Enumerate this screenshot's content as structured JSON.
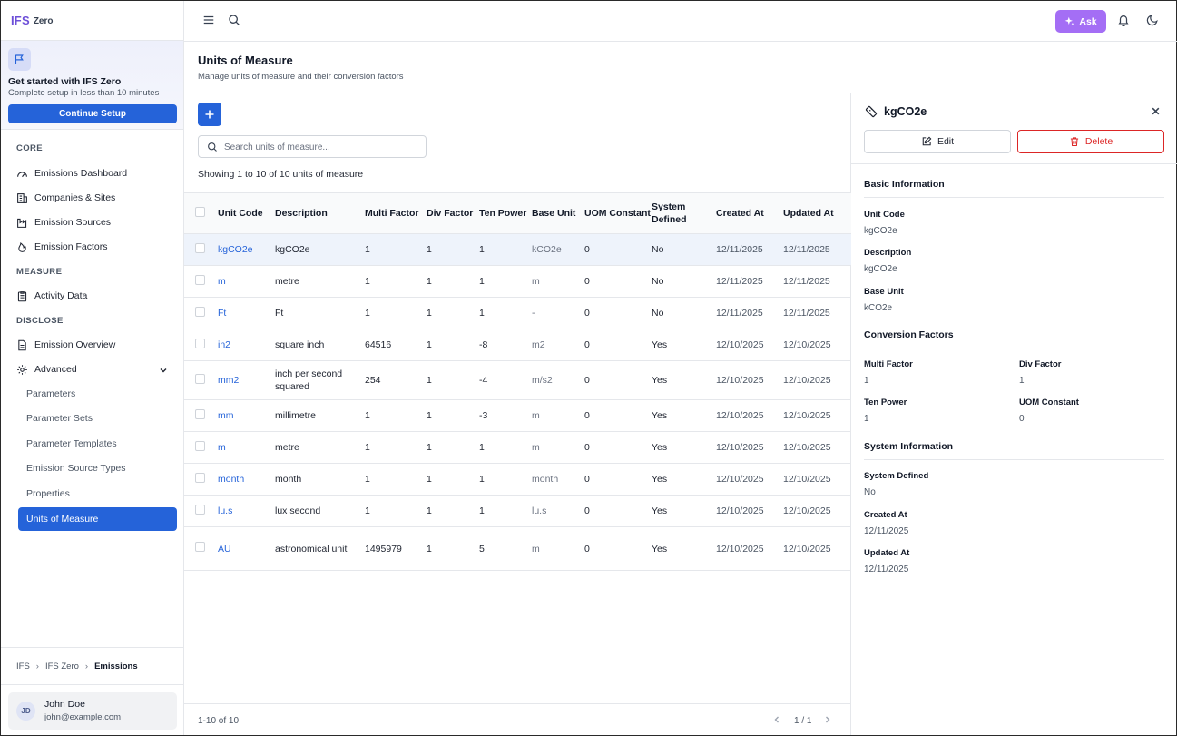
{
  "brand": {
    "name": "IFS",
    "product": "Zero"
  },
  "setup": {
    "title": "Get started with IFS Zero",
    "subtitle": "Complete setup in less than 10 minutes",
    "button": "Continue Setup"
  },
  "sidebar": {
    "sections": [
      "CORE",
      "MEASURE",
      "DISCLOSE"
    ],
    "core": [
      "Emissions Dashboard",
      "Companies & Sites",
      "Emission Sources",
      "Emission Factors"
    ],
    "measure": [
      "Activity Data"
    ],
    "disclose": [
      "Emission Overview",
      "Advanced"
    ],
    "advanced_items": [
      "Parameters",
      "Parameter Sets",
      "Parameter Templates",
      "Emission Source Types",
      "Properties",
      "Units of Measure"
    ]
  },
  "breadcrumb": [
    "IFS",
    "IFS Zero",
    "Emissions"
  ],
  "user": {
    "initials": "JD",
    "name": "John Doe",
    "email": "john@example.com"
  },
  "topbar": {
    "ask": "Ask"
  },
  "page": {
    "title": "Units of Measure",
    "subtitle": "Manage units of measure and their conversion factors"
  },
  "search": {
    "placeholder": "Search units of measure...",
    "value": ""
  },
  "showing": "Showing 1 to 10 of 10 units of measure",
  "table": {
    "headers": [
      "Unit Code",
      "Description",
      "Multi Factor",
      "Div Factor",
      "Ten Power",
      "Base Unit",
      "UOM Constant",
      "System Defined",
      "Created At",
      "Updated At"
    ],
    "rows": [
      [
        "kgCO2e",
        "kgCO2e",
        "1",
        "1",
        "1",
        "kCO2e",
        "0",
        "No",
        "12/11/2025",
        "12/11/2025"
      ],
      [
        "m",
        "metre",
        "1",
        "1",
        "1",
        "m",
        "0",
        "No",
        "12/11/2025",
        "12/11/2025"
      ],
      [
        "Ft",
        "Ft",
        "1",
        "1",
        "1",
        "-",
        "0",
        "No",
        "12/11/2025",
        "12/11/2025"
      ],
      [
        "in2",
        "square inch",
        "64516",
        "1",
        "-8",
        "m2",
        "0",
        "Yes",
        "12/10/2025",
        "12/10/2025"
      ],
      [
        "mm2",
        "inch per second squared",
        "254",
        "1",
        "-4",
        "m/s2",
        "0",
        "Yes",
        "12/10/2025",
        "12/10/2025"
      ],
      [
        "mm",
        "millimetre",
        "1",
        "1",
        "-3",
        "m",
        "0",
        "Yes",
        "12/10/2025",
        "12/10/2025"
      ],
      [
        "m",
        "metre",
        "1",
        "1",
        "1",
        "m",
        "0",
        "Yes",
        "12/10/2025",
        "12/10/2025"
      ],
      [
        "month",
        "month",
        "1",
        "1",
        "1",
        "month",
        "0",
        "Yes",
        "12/10/2025",
        "12/10/2025"
      ],
      [
        "lu.s",
        "lux second",
        "1",
        "1",
        "1",
        "lu.s",
        "0",
        "Yes",
        "12/10/2025",
        "12/10/2025"
      ],
      [
        "AU",
        "astronomical unit",
        "1495979",
        "1",
        "5",
        "m",
        "0",
        "Yes",
        "12/10/2025",
        "12/10/2025"
      ]
    ]
  },
  "pagination": {
    "range": "1-10 of 10",
    "page": "1 / 1"
  },
  "detail": {
    "title": "kgCO2e",
    "edit": "Edit",
    "delete": "Delete",
    "basic_title": "Basic Information",
    "unit_code_label": "Unit Code",
    "unit_code": "kgCO2e",
    "description_label": "Description",
    "description": "kgCO2e",
    "base_unit_label": "Base Unit",
    "base_unit": "kCO2e",
    "conv_title": "Conversion Factors",
    "multi_label": "Multi Factor",
    "multi": "1",
    "div_label": "Div Factor",
    "div": "1",
    "ten_label": "Ten Power",
    "ten": "1",
    "uom_label": "UOM Constant",
    "uom": "0",
    "sys_title": "System Information",
    "sysdef_label": "System Defined",
    "sysdef": "No",
    "created_label": "Created At",
    "created": "12/11/2025",
    "updated_label": "Updated At",
    "updated": "12/11/2025"
  },
  "colors": {
    "primary": "#2563d9",
    "ask": "#a46ef5",
    "danger": "#dc2626",
    "brand": "#6d4fd8"
  }
}
